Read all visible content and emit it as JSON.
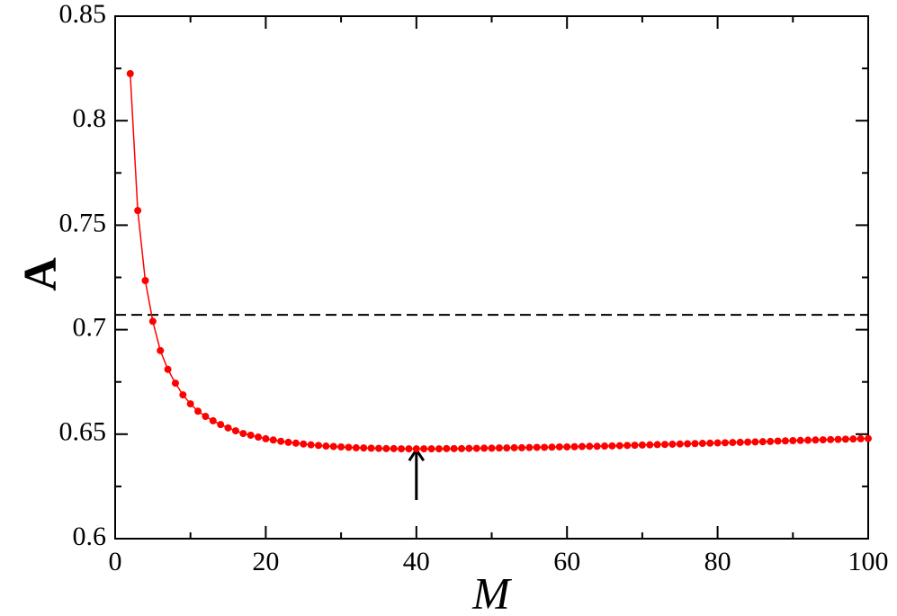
{
  "chart_data": {
    "type": "line",
    "xlabel": "M",
    "ylabel": "A",
    "x": [
      2,
      3,
      4,
      5,
      6,
      7,
      8,
      9,
      10,
      11,
      12,
      13,
      14,
      15,
      16,
      17,
      18,
      19,
      20,
      21,
      22,
      23,
      24,
      25,
      26,
      27,
      28,
      29,
      30,
      31,
      32,
      33,
      34,
      35,
      36,
      37,
      38,
      39,
      40,
      41,
      42,
      43,
      44,
      45,
      46,
      47,
      48,
      49,
      50,
      51,
      52,
      53,
      54,
      55,
      56,
      57,
      58,
      59,
      60,
      61,
      62,
      63,
      64,
      65,
      66,
      67,
      68,
      69,
      70,
      71,
      72,
      73,
      74,
      75,
      76,
      77,
      78,
      79,
      80,
      81,
      82,
      83,
      84,
      85,
      86,
      87,
      88,
      89,
      90,
      91,
      92,
      93,
      94,
      95,
      96,
      97,
      98,
      99,
      100
    ],
    "series": [
      {
        "color": "#ff0000",
        "values": [
          0.8225,
          0.757,
          0.7235,
          0.704,
          0.69,
          0.681,
          0.6744,
          0.6688,
          0.6645,
          0.661,
          0.6585,
          0.6564,
          0.6546,
          0.653,
          0.6516,
          0.6503,
          0.6495,
          0.6486,
          0.6478,
          0.6472,
          0.6466,
          0.6461,
          0.6457,
          0.6453,
          0.6449,
          0.6446,
          0.6443,
          0.6441,
          0.6439,
          0.6437,
          0.6435,
          0.6434,
          0.6433,
          0.6432,
          0.6431,
          0.6431,
          0.643,
          0.643,
          0.643,
          0.643,
          0.643,
          0.643,
          0.6431,
          0.6431,
          0.6431,
          0.6432,
          0.6432,
          0.6433,
          0.6433,
          0.6434,
          0.6434,
          0.6435,
          0.6435,
          0.6436,
          0.6437,
          0.6437,
          0.6438,
          0.6439,
          0.6439,
          0.644,
          0.6441,
          0.6442,
          0.6442,
          0.6443,
          0.6444,
          0.6445,
          0.6446,
          0.6447,
          0.6448,
          0.6449,
          0.645,
          0.6451,
          0.6452,
          0.6453,
          0.6454,
          0.6455,
          0.6456,
          0.6457,
          0.6458,
          0.6459,
          0.646,
          0.6461,
          0.6462,
          0.6463,
          0.6464,
          0.6465,
          0.6467,
          0.6468,
          0.6469,
          0.647,
          0.6471,
          0.6472,
          0.6473,
          0.6474,
          0.6475,
          0.6476,
          0.6477,
          0.6478,
          0.6479
        ]
      }
    ],
    "xlim": [
      0,
      100
    ],
    "ylim": [
      0.6,
      0.85
    ],
    "xticks": [
      0,
      20,
      40,
      60,
      80,
      100
    ],
    "yticks": [
      {
        "value": 0.6,
        "label": "0.6"
      },
      0.65,
      0.7,
      0.75,
      0.8,
      0.85
    ],
    "xminorticks": [
      10,
      30,
      50,
      70,
      90
    ],
    "yminorticks": [
      0.625,
      0.675,
      0.725,
      0.775,
      0.825
    ],
    "hline": 0.7071,
    "arrow": {
      "x": 40,
      "y_from": 0.6185,
      "y_to": 0.6425
    }
  }
}
